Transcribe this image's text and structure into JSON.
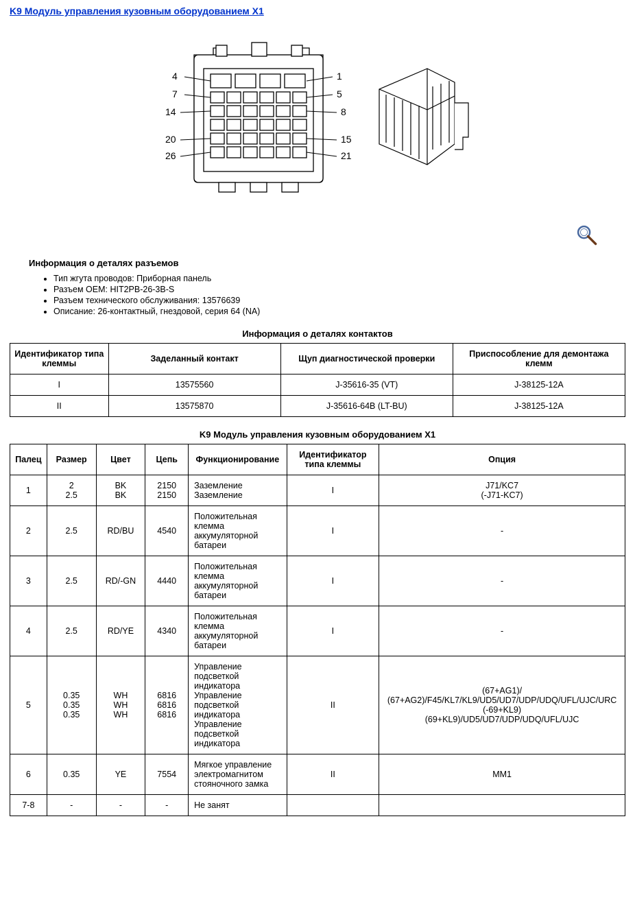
{
  "title": "K9 Модуль управления кузовным оборудованием X1",
  "diagram": {
    "front_labels_left": [
      "4",
      "7",
      "14",
      "20",
      "26"
    ],
    "front_labels_right": [
      "1",
      "5",
      "8",
      "15",
      "21"
    ],
    "stroke": "#000000",
    "fill": "#ffffff",
    "arrow": "↓"
  },
  "zoom_icon": {
    "name": "magnifier-icon",
    "ring_color": "#4a6aa0",
    "handle_color": "#6b3a1a"
  },
  "details": {
    "heading": "Информация о деталях разъемов",
    "items": [
      "Тип жгута проводов: Приборная панель",
      "Разъем OEM: HIT2PB-26-3B-S",
      "Разъем технического обслуживания: 13576639",
      "Описание: 26-контактный, гнездовой, серия 64 (NA)"
    ]
  },
  "table1": {
    "caption": "Информация о деталях контактов",
    "col_widths_pct": [
      16,
      28,
      28,
      28
    ],
    "headers": [
      "Идентификатор типа клеммы",
      "Заделанный контакт",
      "Щуп диагностической проверки",
      "Приспособление для демонтажа клемм"
    ],
    "rows": [
      [
        "I",
        "13575560",
        "J-35616-35 (VT)",
        "J-38125-12A"
      ],
      [
        "II",
        "13575870",
        "J-35616-64B (LT-BU)",
        "J-38125-12A"
      ]
    ]
  },
  "table2": {
    "caption": "K9 Модуль управления кузовным оборудованием X1",
    "col_widths_pct": [
      6,
      8,
      8,
      7,
      16,
      15,
      40
    ],
    "headers": [
      "Палец",
      "Размер",
      "Цвет",
      "Цепь",
      "Функционирование",
      "Идентификатор типа клеммы",
      "Опция"
    ],
    "rows": [
      {
        "pin": "1",
        "size": [
          "2",
          "2.5"
        ],
        "color": [
          "BK",
          "BK"
        ],
        "circuit": [
          "2150",
          "2150"
        ],
        "func": [
          "Заземление",
          "Заземление"
        ],
        "term": "I",
        "option": [
          "J71/KC7",
          "(-J71-KC7)"
        ]
      },
      {
        "pin": "2",
        "size": [
          "2.5"
        ],
        "color": [
          "RD/BU"
        ],
        "circuit": [
          "4540"
        ],
        "func": [
          "Положительная клемма аккумуляторной батареи"
        ],
        "term": "I",
        "option": [
          "-"
        ]
      },
      {
        "pin": "3",
        "size": [
          "2.5"
        ],
        "color": [
          "RD/-GN"
        ],
        "circuit": [
          "4440"
        ],
        "func": [
          "Положительная клемма аккумуляторной батареи"
        ],
        "term": "I",
        "option": [
          "-"
        ]
      },
      {
        "pin": "4",
        "size": [
          "2.5"
        ],
        "color": [
          "RD/YE"
        ],
        "circuit": [
          "4340"
        ],
        "func": [
          "Положительная клемма аккумуляторной батареи"
        ],
        "term": "I",
        "option": [
          "-"
        ]
      },
      {
        "pin": "5",
        "size": [
          "0.35",
          "0.35",
          "0.35"
        ],
        "color": [
          "WH",
          "WH",
          "WH"
        ],
        "circuit": [
          "6816",
          "6816",
          "6816"
        ],
        "func": [
          "Управление подсветкой индикатора",
          "Управление подсветкой индикатора",
          "Управление подсветкой индикатора"
        ],
        "term": "II",
        "option": [
          "(67+AG1)/",
          "(67+AG2)/F45/KL7/KL9/UD5/UD7/UDP/UDQ/UFL/UJC/URC",
          "(-69+KL9)",
          "(69+KL9)/UD5/UD7/UDP/UDQ/UFL/UJC"
        ]
      },
      {
        "pin": "6",
        "size": [
          "0.35"
        ],
        "color": [
          "YE"
        ],
        "circuit": [
          "7554"
        ],
        "func": [
          "Мягкое управление электромагнитом стояночного замка"
        ],
        "term": "II",
        "option": [
          "MM1"
        ]
      },
      {
        "pin": "7-8",
        "size": [
          "-"
        ],
        "color": [
          "-"
        ],
        "circuit": [
          "-"
        ],
        "func": [
          "Не занят"
        ],
        "term": "",
        "option": [
          ""
        ]
      }
    ]
  }
}
